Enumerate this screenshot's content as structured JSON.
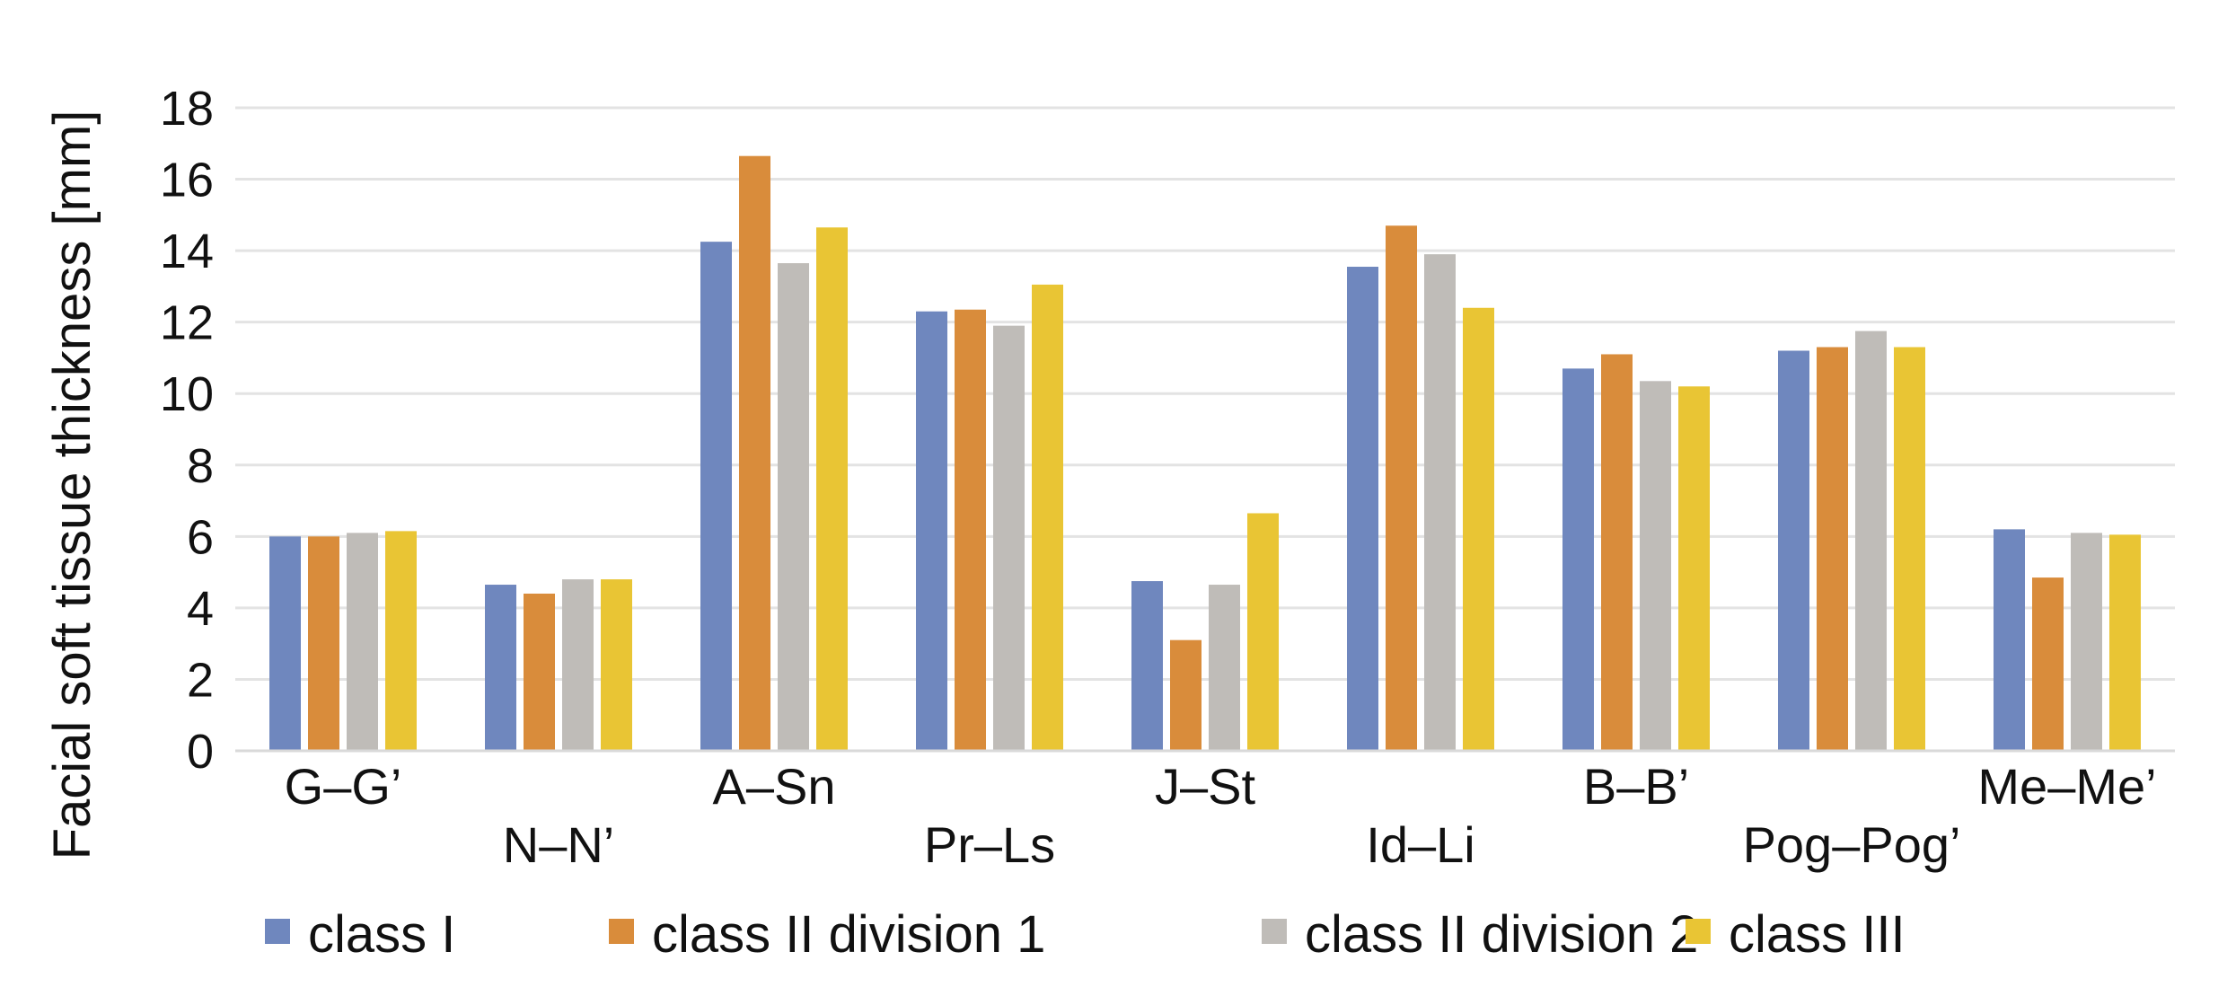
{
  "chart_data": {
    "type": "bar",
    "title": "",
    "xlabel": "",
    "ylabel": "Facial soft tissue thickness [mm]",
    "ylim": [
      0,
      18
    ],
    "yticks": [
      0,
      2,
      4,
      6,
      8,
      10,
      12,
      14,
      16,
      18
    ],
    "grid": true,
    "legend_position": "bottom",
    "categories": [
      "G–G’",
      "N–N’",
      "A–Sn",
      "Pr–Ls",
      "J–St",
      "Id–Li",
      "B–B’",
      "Pog–Pog’",
      "Me–Me’"
    ],
    "series": [
      {
        "name": "class I",
        "color": "#6F87BE",
        "values": [
          6.0,
          4.65,
          14.25,
          12.3,
          4.75,
          13.55,
          10.7,
          11.2,
          6.2
        ]
      },
      {
        "name": "class II division 1",
        "color": "#D98C3B",
        "values": [
          6.0,
          4.4,
          16.65,
          12.35,
          3.1,
          14.7,
          11.1,
          11.3,
          4.85
        ]
      },
      {
        "name": "class II division 2",
        "color": "#BFBCB8",
        "values": [
          6.1,
          4.8,
          13.65,
          11.9,
          4.65,
          13.9,
          10.35,
          11.75,
          6.1
        ]
      },
      {
        "name": "class III",
        "color": "#E9C534",
        "values": [
          6.15,
          4.8,
          14.65,
          13.05,
          6.65,
          12.4,
          10.2,
          11.3,
          6.05
        ]
      }
    ]
  }
}
